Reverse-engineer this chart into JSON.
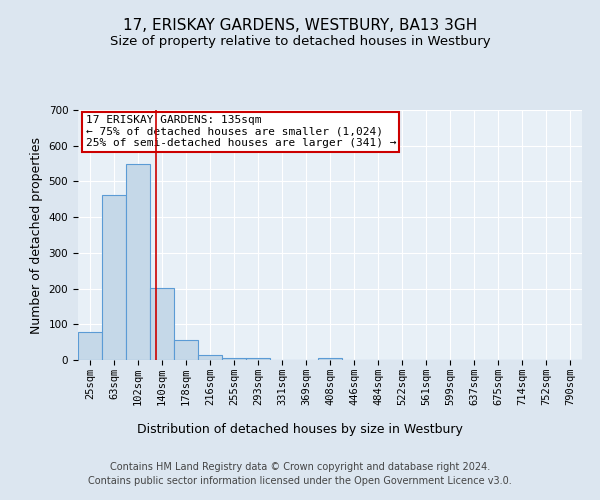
{
  "title": "17, ERISKAY GARDENS, WESTBURY, BA13 3GH",
  "subtitle": "Size of property relative to detached houses in Westbury",
  "xlabel": "Distribution of detached houses by size in Westbury",
  "ylabel": "Number of detached properties",
  "categories": [
    "25sqm",
    "63sqm",
    "102sqm",
    "140sqm",
    "178sqm",
    "216sqm",
    "255sqm",
    "293sqm",
    "331sqm",
    "369sqm",
    "408sqm",
    "446sqm",
    "484sqm",
    "522sqm",
    "561sqm",
    "599sqm",
    "637sqm",
    "675sqm",
    "714sqm",
    "752sqm",
    "790sqm"
  ],
  "bar_heights": [
    78,
    463,
    550,
    202,
    55,
    15,
    7,
    7,
    0,
    0,
    7,
    0,
    0,
    0,
    0,
    0,
    0,
    0,
    0,
    0,
    0
  ],
  "bar_color": "#c5d8e8",
  "bar_edge_color": "#5b9bd5",
  "bar_edge_width": 0.8,
  "vline_x": 2.75,
  "vline_color": "#cc0000",
  "annotation_text": "17 ERISKAY GARDENS: 135sqm\n← 75% of detached houses are smaller (1,024)\n25% of semi-detached houses are larger (341) →",
  "annotation_box_color": "#ffffff",
  "annotation_box_edge": "#cc0000",
  "bg_color": "#dce6f0",
  "plot_bg_color": "#e8f0f7",
  "ylim": [
    0,
    700
  ],
  "yticks": [
    0,
    100,
    200,
    300,
    400,
    500,
    600,
    700
  ],
  "footer_line1": "Contains HM Land Registry data © Crown copyright and database right 2024.",
  "footer_line2": "Contains public sector information licensed under the Open Government Licence v3.0.",
  "title_fontsize": 11,
  "subtitle_fontsize": 9.5,
  "axis_label_fontsize": 9,
  "tick_fontsize": 7.5,
  "annotation_fontsize": 8,
  "footer_fontsize": 7
}
